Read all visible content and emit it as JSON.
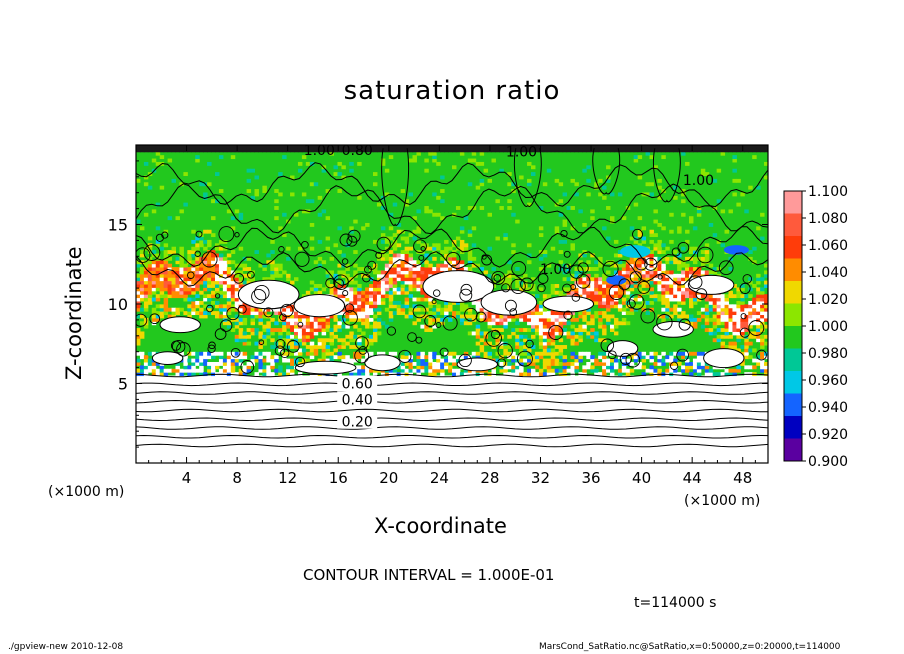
{
  "chart_data": {
    "type": "heatmap",
    "title": "saturation ratio",
    "xlabel": "X-coordinate",
    "ylabel": "Z-coordinate",
    "x_unit_label": "(×1000 m)",
    "xlim": [
      0,
      50
    ],
    "ylim": [
      0,
      20
    ],
    "x_ticks": [
      4,
      8,
      12,
      16,
      20,
      24,
      28,
      32,
      36,
      40,
      44,
      48
    ],
    "y_ticks": [
      5,
      10,
      15
    ],
    "colorbar": {
      "levels": [
        1.1,
        1.08,
        1.06,
        1.04,
        1.02,
        1.0,
        0.98,
        0.96,
        0.94,
        0.92,
        0.9
      ],
      "tick_labels": [
        "1.100",
        "1.080",
        "1.060",
        "1.040",
        "1.020",
        "1.000",
        "0.980",
        "0.960",
        "0.940",
        "0.920",
        "0.900"
      ],
      "colors": [
        "#ff9a9a",
        "#ff5a3c",
        "#ff3c0a",
        "#ff8c00",
        "#f0d800",
        "#8ce600",
        "#22c81e",
        "#00c896",
        "#00c8e6",
        "#1464ff",
        "#0000c0",
        "#5a00a0"
      ]
    },
    "contour_labels": [
      {
        "text": "1.00",
        "x": 14.5,
        "z": 19.7
      },
      {
        "text": "0.80",
        "x": 17.5,
        "z": 19.7
      },
      {
        "text": "1.00",
        "x": 30.5,
        "z": 19.6
      },
      {
        "text": "1.00",
        "x": 44.5,
        "z": 17.8
      },
      {
        "text": "1.00",
        "x": 33.2,
        "z": 12.2
      },
      {
        "text": "0.60",
        "x": 17.5,
        "z": 5.0
      },
      {
        "text": "0.40",
        "x": 17.5,
        "z": 4.0
      },
      {
        "text": "0.20",
        "x": 17.5,
        "z": 2.6
      }
    ],
    "contour_interval_text": "CONTOUR INTERVAL = 1.000E-01",
    "time_text": "t=114000 s"
  },
  "footer": {
    "left": "./gpview-new   2010-12-08",
    "right": "MarsCond_SatRatio.nc@SatRatio,x=0:50000,z=0:20000,t=114000"
  }
}
